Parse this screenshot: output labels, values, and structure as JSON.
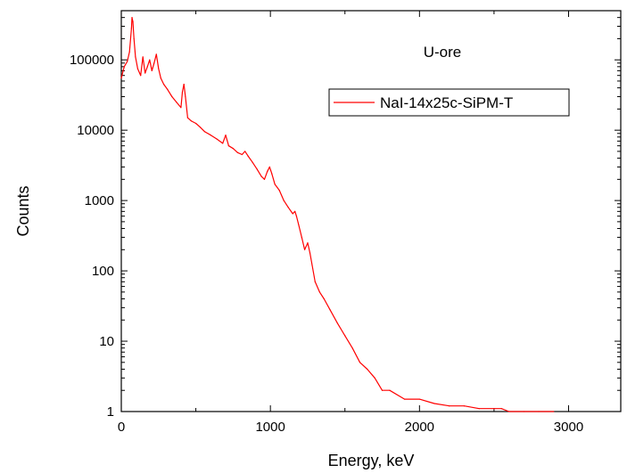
{
  "chart_data": {
    "type": "line",
    "title": "",
    "xlabel": "Energy, keV",
    "ylabel": "Counts",
    "xlim": [
      0,
      3350
    ],
    "ylim": [
      1,
      500000
    ],
    "yscale": "log",
    "grid": false,
    "legend_position": "top-right",
    "annotation": "U-ore",
    "xticks": [
      0,
      1000,
      2000,
      3000
    ],
    "xtick_labels": [
      "0",
      "1000",
      "2000",
      "3000"
    ],
    "yticks": [
      1,
      10,
      100,
      1000,
      10000,
      100000
    ],
    "ytick_labels": [
      "1",
      "10",
      "100",
      "1000",
      "10000",
      "100000"
    ],
    "series": [
      {
        "name": "NaI-14x25c-SiPM-T",
        "color": "#ff0000",
        "x": [
          0,
          20,
          40,
          55,
          68,
          72,
          78,
          85,
          95,
          110,
          130,
          145,
          160,
          175,
          190,
          205,
          220,
          235,
          250,
          265,
          285,
          310,
          340,
          370,
          400,
          410,
          420,
          430,
          445,
          470,
          500,
          530,
          560,
          600,
          640,
          680,
          700,
          720,
          750,
          780,
          810,
          830,
          850,
          880,
          910,
          940,
          960,
          980,
          995,
          1010,
          1030,
          1060,
          1090,
          1120,
          1150,
          1165,
          1175,
          1190,
          1210,
          1230,
          1250,
          1265,
          1280,
          1300,
          1330,
          1360,
          1400,
          1450,
          1500,
          1550,
          1600,
          1650,
          1700,
          1750,
          1800,
          1900,
          2000,
          2100,
          2200,
          2300,
          2400,
          2500,
          2550,
          2600,
          2700,
          2800,
          2900
        ],
        "y": [
          55000,
          80000,
          95000,
          130000,
          280000,
          400000,
          350000,
          200000,
          110000,
          75000,
          60000,
          110000,
          65000,
          80000,
          100000,
          70000,
          90000,
          120000,
          75000,
          55000,
          45000,
          38000,
          30000,
          25000,
          21000,
          35000,
          45000,
          30000,
          15000,
          13500,
          12500,
          11000,
          9500,
          8500,
          7500,
          6500,
          8500,
          6000,
          5500,
          4800,
          4500,
          5000,
          4300,
          3500,
          2800,
          2200,
          2000,
          2600,
          3000,
          2400,
          1700,
          1400,
          1000,
          800,
          650,
          700,
          600,
          450,
          300,
          200,
          250,
          180,
          120,
          70,
          50,
          40,
          28,
          18,
          12,
          8,
          5,
          4,
          3,
          2,
          2,
          1.5,
          1.5,
          1.3,
          1.2,
          1.2,
          1.1,
          1.1,
          1.1,
          1,
          1,
          1,
          1
        ]
      }
    ]
  }
}
